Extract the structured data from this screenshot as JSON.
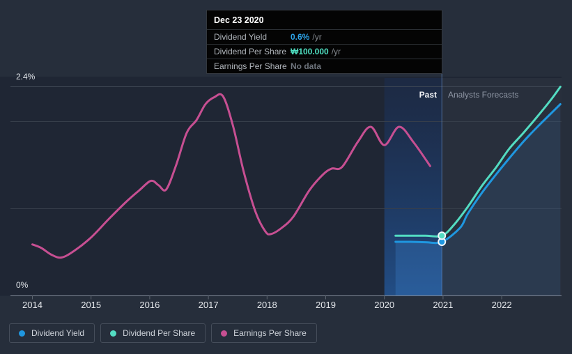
{
  "labels": {
    "y_top": "2.4%",
    "y_bottom": "0%",
    "past": "Past",
    "forecasts": "Analysts Forecasts"
  },
  "tooltip": {
    "date": "Dec 23 2020",
    "rows": [
      {
        "label": "Dividend Yield",
        "value": "0.6%",
        "suffix": "/yr",
        "value_color": "#2da3e8"
      },
      {
        "label": "Dividend Per Share",
        "value": "₩100.000",
        "suffix": "/yr",
        "value_color": "#4fe0c2"
      },
      {
        "label": "Earnings Per Share",
        "value": "No data",
        "suffix": "",
        "value_color": "#6e747c"
      }
    ]
  },
  "legend": [
    {
      "label": "Dividend Yield",
      "color": "#1f97e0"
    },
    {
      "label": "Dividend Per Share",
      "color": "#53dcc2"
    },
    {
      "label": "Earnings Per Share",
      "color": "#c74f92"
    }
  ],
  "chart_data": {
    "type": "line",
    "y_unit": "%",
    "x_axis": {
      "ticks": [
        2014,
        2015,
        2016,
        2017,
        2018,
        2019,
        2020,
        2021,
        2022
      ],
      "range": [
        2013.63,
        2023.0
      ]
    },
    "y_axis": {
      "range": [
        0,
        2.4
      ],
      "top_line": 2.4,
      "gridlines": [
        1.0,
        2.0
      ],
      "zero_line": 0
    },
    "divider_x": 2020.98,
    "past_band": [
      2020.0,
      2020.98
    ],
    "past_fill_start": 2020.19,
    "legend_position": "bottom",
    "series": [
      {
        "name": "Earnings Per Share",
        "color": "#c74f92",
        "points": [
          [
            2014.0,
            0.59
          ],
          [
            2014.15,
            0.55
          ],
          [
            2014.33,
            0.47
          ],
          [
            2014.5,
            0.44
          ],
          [
            2014.72,
            0.52
          ],
          [
            2015.0,
            0.67
          ],
          [
            2015.3,
            0.88
          ],
          [
            2015.6,
            1.08
          ],
          [
            2015.82,
            1.21
          ],
          [
            2016.02,
            1.32
          ],
          [
            2016.15,
            1.27
          ],
          [
            2016.28,
            1.22
          ],
          [
            2016.45,
            1.5
          ],
          [
            2016.63,
            1.87
          ],
          [
            2016.8,
            2.02
          ],
          [
            2016.95,
            2.2
          ],
          [
            2017.1,
            2.28
          ],
          [
            2017.25,
            2.29
          ],
          [
            2017.42,
            1.95
          ],
          [
            2017.6,
            1.43
          ],
          [
            2017.8,
            0.97
          ],
          [
            2017.97,
            0.74
          ],
          [
            2018.07,
            0.71
          ],
          [
            2018.25,
            0.78
          ],
          [
            2018.45,
            0.91
          ],
          [
            2018.72,
            1.21
          ],
          [
            2018.95,
            1.39
          ],
          [
            2019.1,
            1.46
          ],
          [
            2019.28,
            1.48
          ],
          [
            2019.55,
            1.77
          ],
          [
            2019.77,
            1.94
          ],
          [
            2020.0,
            1.73
          ],
          [
            2020.25,
            1.94
          ],
          [
            2020.5,
            1.76
          ],
          [
            2020.78,
            1.49
          ]
        ]
      },
      {
        "name": "Dividend Yield",
        "color": "#1f97e0",
        "marker": [
          2020.98,
          0.62
        ],
        "fill_under": true,
        "points": [
          [
            2020.19,
            0.62
          ],
          [
            2020.45,
            0.62
          ],
          [
            2020.7,
            0.615
          ],
          [
            2020.98,
            0.62
          ],
          [
            2021.29,
            0.78
          ],
          [
            2021.42,
            0.94
          ],
          [
            2021.66,
            1.18
          ],
          [
            2021.9,
            1.39
          ],
          [
            2022.13,
            1.58
          ],
          [
            2022.37,
            1.77
          ],
          [
            2022.61,
            1.94
          ],
          [
            2022.85,
            2.1
          ],
          [
            2023.0,
            2.2
          ]
        ]
      },
      {
        "name": "Dividend Per Share",
        "color": "#53dcc2",
        "marker": [
          2020.98,
          0.69
        ],
        "points": [
          [
            2020.19,
            0.69
          ],
          [
            2020.45,
            0.69
          ],
          [
            2020.7,
            0.69
          ],
          [
            2020.98,
            0.69
          ],
          [
            2021.18,
            0.81
          ],
          [
            2021.42,
            1.02
          ],
          [
            2021.66,
            1.26
          ],
          [
            2021.9,
            1.47
          ],
          [
            2022.13,
            1.69
          ],
          [
            2022.37,
            1.87
          ],
          [
            2022.61,
            2.06
          ],
          [
            2022.85,
            2.26
          ],
          [
            2023.0,
            2.4
          ]
        ]
      }
    ]
  }
}
